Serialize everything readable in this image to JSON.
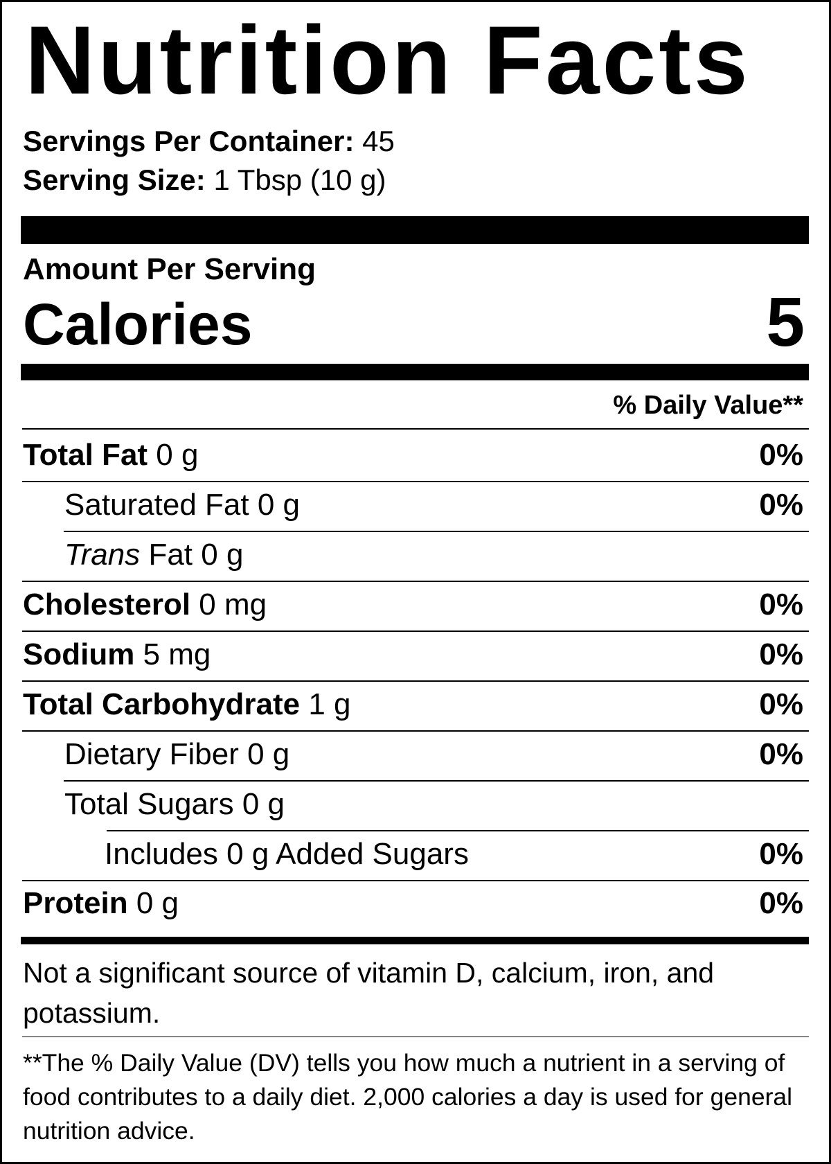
{
  "title": "Nutrition Facts",
  "servings_per_container": {
    "label": "Servings Per Container:",
    "value": "45"
  },
  "serving_size": {
    "label": "Serving Size:",
    "value": "1 Tbsp (10 g)"
  },
  "amount_per_serving": "Amount Per Serving",
  "calories": {
    "label": "Calories",
    "value": "5"
  },
  "daily_value_header": "% Daily Value**",
  "nutrients": [
    {
      "name": "Total Fat",
      "amount": "0 g",
      "dv": "0%"
    },
    {
      "name": "Saturated Fat",
      "amount": "0 g",
      "dv": "0%"
    },
    {
      "name": "Trans",
      "suffix": "Fat",
      "amount": "0 g",
      "dv": ""
    },
    {
      "name": "Cholesterol",
      "amount": "0 mg",
      "dv": "0%"
    },
    {
      "name": "Sodium",
      "amount": "5 mg",
      "dv": "0%"
    },
    {
      "name": "Total Carbohydrate",
      "amount": "1 g",
      "dv": "0%"
    },
    {
      "name": "Dietary Fiber",
      "amount": "0 g",
      "dv": "0%"
    },
    {
      "name": "Total Sugars",
      "amount": "0 g",
      "dv": ""
    },
    {
      "name": "Includes 0 g Added Sugars",
      "amount": "",
      "dv": "0%"
    },
    {
      "name": "Protein",
      "amount": "0 g",
      "dv": "0%"
    }
  ],
  "not_significant": "Not a significant source of vitamin D, calcium, iron, and potassium.",
  "footnote": "**The % Daily Value (DV) tells you how much a nutrient in a serving of food contributes to a daily diet. 2,000 calories a day is used for general nutrition advice."
}
